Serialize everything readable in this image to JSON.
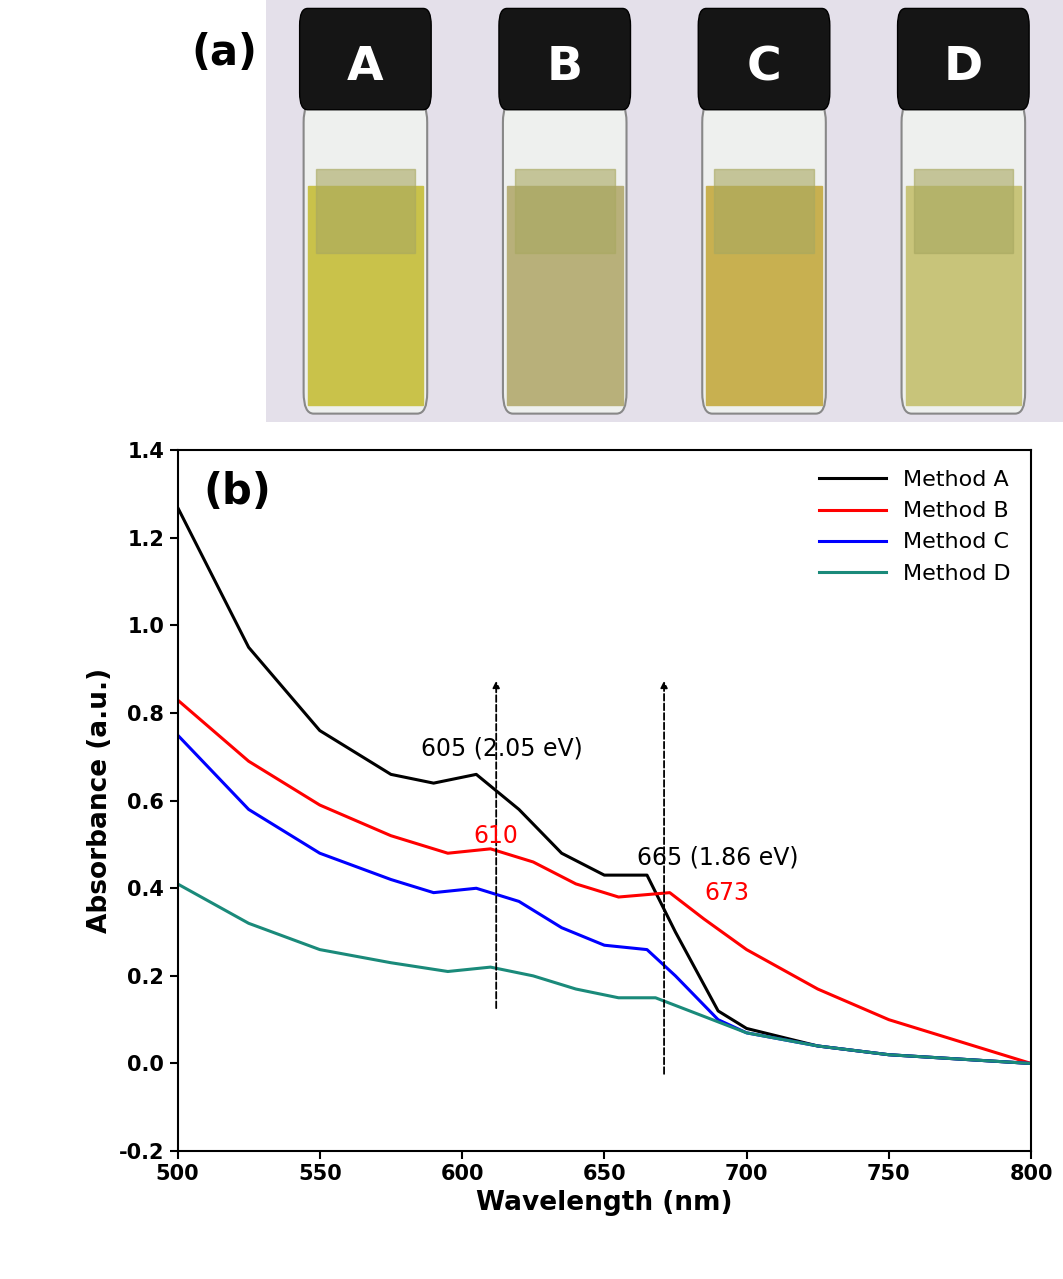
{
  "photo": {
    "label": "(a)",
    "vials": [
      "A",
      "B",
      "C",
      "D"
    ]
  },
  "chart_data": {
    "type": "line",
    "title": "(b)",
    "x_label": "Wavelength (nm)",
    "y_label": "Absorbance (a.u.)",
    "xlim": [
      500,
      800
    ],
    "xticks": [
      500,
      550,
      600,
      650,
      700,
      750,
      800
    ],
    "ylim": [
      -0.2,
      1.4
    ],
    "yticks": [
      {
        "value": -0.2,
        "label": "-0.2"
      },
      {
        "value": 0.0,
        "label": "0.0"
      },
      {
        "value": 0.2,
        "label": "0.2"
      },
      {
        "value": 0.4,
        "label": "0.4"
      },
      {
        "value": 0.6,
        "label": "0.6"
      },
      {
        "value": 0.8,
        "label": "0.8"
      },
      {
        "value": 1.0,
        "label": "1.0"
      },
      {
        "value": 1.2,
        "label": "1.2"
      },
      {
        "value": 1.4,
        "label": "1.4"
      }
    ],
    "grid": false,
    "legend": "upper right",
    "series": [
      {
        "name": "Method A",
        "color": "#000000",
        "x": [
          500,
          525,
          550,
          575,
          590,
          605,
          620,
          635,
          650,
          665,
          675,
          690,
          700,
          725,
          750,
          800
        ],
        "values": [
          1.27,
          0.95,
          0.76,
          0.66,
          0.64,
          0.66,
          0.58,
          0.48,
          0.43,
          0.43,
          0.3,
          0.12,
          0.08,
          0.04,
          0.02,
          0.0
        ]
      },
      {
        "name": "Method B",
        "color": "#ff0000",
        "x": [
          500,
          525,
          550,
          575,
          595,
          610,
          625,
          640,
          655,
          673,
          685,
          700,
          725,
          750,
          775,
          800
        ],
        "values": [
          0.83,
          0.69,
          0.59,
          0.52,
          0.48,
          0.49,
          0.46,
          0.41,
          0.38,
          0.39,
          0.33,
          0.26,
          0.17,
          0.1,
          0.05,
          0.0
        ]
      },
      {
        "name": "Method C",
        "color": "#0000ff",
        "x": [
          500,
          525,
          550,
          575,
          590,
          605,
          620,
          635,
          650,
          665,
          675,
          690,
          700,
          725,
          750,
          800
        ],
        "values": [
          0.75,
          0.58,
          0.48,
          0.42,
          0.39,
          0.4,
          0.37,
          0.31,
          0.27,
          0.26,
          0.2,
          0.1,
          0.07,
          0.04,
          0.02,
          0.0
        ]
      },
      {
        "name": "Method D",
        "color": "#1a8a7a",
        "x": [
          500,
          525,
          550,
          575,
          595,
          610,
          625,
          640,
          655,
          668,
          680,
          700,
          725,
          750,
          800
        ],
        "values": [
          0.41,
          0.32,
          0.26,
          0.23,
          0.21,
          0.22,
          0.2,
          0.17,
          0.15,
          0.15,
          0.12,
          0.07,
          0.04,
          0.02,
          0.0
        ]
      }
    ],
    "annotations": [
      {
        "text": "605 (2.05 eV)",
        "x": 614,
        "y": 0.72,
        "color": "#000000"
      },
      {
        "text": "610",
        "x": 612,
        "y": 0.52,
        "color": "#ff0000"
      },
      {
        "text": "665 (1.86 eV)",
        "x": 690,
        "y": 0.47,
        "color": "#000000"
      },
      {
        "text": "673",
        "x": 693,
        "y": 0.39,
        "color": "#ff0000"
      }
    ],
    "arrows": [
      {
        "x": 612,
        "y": [
          0.12,
          0.88
        ]
      },
      {
        "x": 671,
        "y": [
          -0.03,
          0.88
        ]
      }
    ]
  }
}
